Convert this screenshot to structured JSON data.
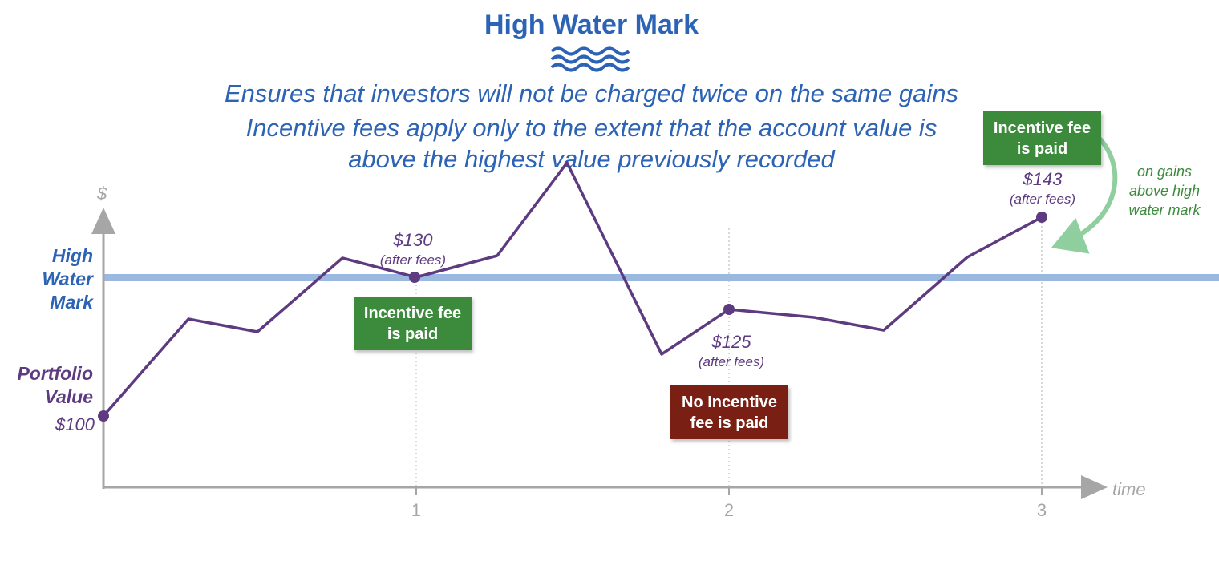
{
  "title": "High Water Mark",
  "subtitle_lines": [
    "Ensures that investors will not be charged twice on the same gains",
    "Incentive fees apply only to the extent that the account value is",
    "above the highest value previously recorded"
  ],
  "y_axis_symbol": "$",
  "x_axis_label": "time",
  "x_ticks": [
    "1",
    "2",
    "3"
  ],
  "high_water_mark_label": [
    "High",
    "Water",
    "Mark"
  ],
  "portfolio_label": [
    "Portfolio",
    "Value"
  ],
  "start_value": "$100",
  "points": [
    {
      "amount": "$130",
      "note": "(after fees)"
    },
    {
      "amount": "$125",
      "note": "(after fees)"
    },
    {
      "amount": "$143",
      "note": "(after fees)"
    }
  ],
  "badges": [
    {
      "line1": "Incentive fee",
      "line2": "is paid",
      "kind": "paid"
    },
    {
      "line1": "No Incentive",
      "line2": "fee is paid",
      "kind": "not-paid"
    },
    {
      "line1": "Incentive fee",
      "line2": "is paid",
      "kind": "paid"
    }
  ],
  "side_note": [
    "on gains",
    "above high",
    "water mark"
  ],
  "colors": {
    "title": "#2d63b5",
    "line": "#5e3b80",
    "hwm": "#9bb8e0",
    "paid": "#3c8a3c",
    "not_paid": "#7a1f13",
    "axis": "#a6a6a6",
    "arrow": "#8fcf9f"
  }
}
